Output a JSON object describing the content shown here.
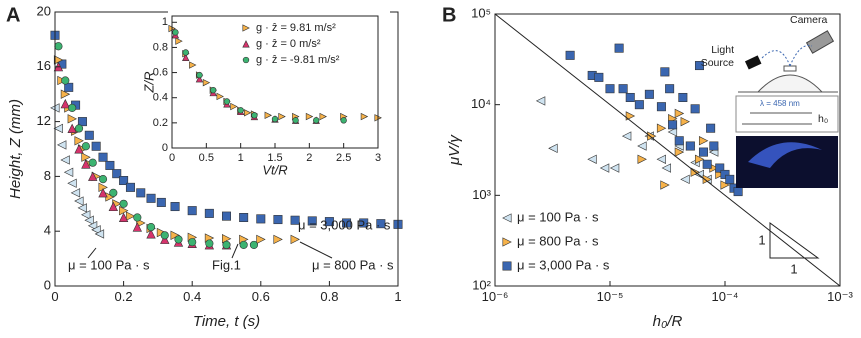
{
  "chart_data": [
    {
      "type": "scatter",
      "label": "A",
      "xlabel": "Time, t (s)",
      "ylabel": "Height, Z (mm)",
      "xlim": [
        0,
        1
      ],
      "xticks": [
        0,
        0.2,
        0.4,
        0.6,
        0.8,
        1
      ],
      "ylim": [
        0,
        20
      ],
      "yticks": [
        0,
        4,
        8,
        12,
        16,
        20
      ],
      "annotations": [
        "μ = 100 Pa · s",
        "Fig.1",
        "μ = 800 Pa · s",
        "μ = 3,000 Pa · s"
      ],
      "series": [
        {
          "color": "#3a66b0",
          "marker": "square",
          "x": [
            0,
            0.02,
            0.04,
            0.06,
            0.08,
            0.1,
            0.12,
            0.14,
            0.16,
            0.18,
            0.2,
            0.22,
            0.25,
            0.28,
            0.31,
            0.35,
            0.4,
            0.45,
            0.5,
            0.55,
            0.6,
            0.65,
            0.7,
            0.75,
            0.8,
            0.85,
            0.9,
            0.95,
            1
          ],
          "values": [
            18.3,
            16.2,
            14.5,
            13.2,
            12,
            11,
            10.2,
            9.4,
            8.8,
            8.2,
            7.7,
            7.2,
            6.8,
            6.4,
            6.1,
            5.8,
            5.5,
            5.3,
            5.1,
            5,
            4.9,
            4.85,
            4.8,
            4.75,
            4.7,
            4.6,
            4.6,
            4.55,
            4.5
          ]
        },
        {
          "color": "#f6b24a",
          "marker": "triangle-right",
          "x": [
            0.01,
            0.02,
            0.03,
            0.04,
            0.05,
            0.06,
            0.07,
            0.08,
            0.09,
            0.1,
            0.12,
            0.14,
            0.16,
            0.18,
            0.2,
            0.22,
            0.25,
            0.28,
            0.31,
            0.35,
            0.4,
            0.45,
            0.5,
            0.55,
            0.6,
            0.65,
            0.7
          ],
          "values": [
            16.5,
            15,
            14,
            13,
            12.2,
            11.3,
            10.6,
            10,
            9.4,
            8.9,
            8,
            7.2,
            6.5,
            6,
            5.5,
            5.1,
            4.6,
            4.2,
            3.9,
            3.7,
            3.55,
            3.5,
            3.45,
            3.4,
            3.4,
            3.4,
            3.4
          ]
        },
        {
          "color": "#d6336c",
          "marker": "triangle-up",
          "x": [
            0.01,
            0.03,
            0.05,
            0.07,
            0.09,
            0.11,
            0.14,
            0.17,
            0.2,
            0.24,
            0.28,
            0.32,
            0.36,
            0.4,
            0.45,
            0.5
          ],
          "values": [
            16,
            13.3,
            11.5,
            10,
            8.9,
            8,
            6.8,
            5.8,
            5,
            4.3,
            3.8,
            3.4,
            3.2,
            3.1,
            3,
            3
          ]
        },
        {
          "color": "#3cb371",
          "marker": "circle",
          "x": [
            0.01,
            0.03,
            0.05,
            0.07,
            0.09,
            0.11,
            0.14,
            0.17,
            0.2,
            0.24,
            0.28,
            0.32,
            0.36,
            0.4,
            0.45,
            0.5,
            0.55,
            0.58
          ],
          "values": [
            17.5,
            15,
            13,
            11.5,
            10.2,
            9,
            7.8,
            6.8,
            6,
            5,
            4.3,
            3.7,
            3.4,
            3.2,
            3.1,
            3,
            3,
            3
          ]
        },
        {
          "color": "#cfe3f0",
          "marker": "triangle-left",
          "x": [
            0,
            0.01,
            0.02,
            0.03,
            0.04,
            0.05,
            0.06,
            0.07,
            0.08,
            0.09,
            0.1,
            0.11,
            0.12,
            0.13
          ],
          "values": [
            13,
            11.5,
            10.3,
            9.2,
            8.3,
            7.5,
            6.8,
            6.2,
            5.7,
            5.2,
            4.8,
            4.4,
            4.1,
            3.8
          ]
        }
      ]
    },
    {
      "type": "scatter",
      "xlabel": "Vt/R",
      "ylabel": "Z/R",
      "legend": "upper right",
      "xlim": [
        0,
        3
      ],
      "xticks": [
        0,
        0.5,
        1,
        1.5,
        2,
        2.5,
        3
      ],
      "ylim": [
        0,
        1.05
      ],
      "yticks": [
        0,
        0.2,
        0.4,
        0.6,
        0.8,
        1
      ],
      "series": [
        {
          "name": "g · ẑ = 9.81 m/s²",
          "color": "#f6b24a",
          "marker": "triangle-right",
          "x": [
            0,
            0.1,
            0.2,
            0.3,
            0.4,
            0.5,
            0.6,
            0.7,
            0.8,
            0.9,
            1,
            1.1,
            1.2,
            1.4,
            1.6,
            1.8,
            2,
            2.2,
            2.5,
            2.8,
            3
          ],
          "values": [
            0.95,
            0.85,
            0.75,
            0.66,
            0.58,
            0.52,
            0.46,
            0.41,
            0.37,
            0.33,
            0.3,
            0.28,
            0.27,
            0.26,
            0.25,
            0.25,
            0.25,
            0.25,
            0.25,
            0.25,
            0.24
          ]
        },
        {
          "name": "g · ẑ = 0 m/s²",
          "color": "#d6336c",
          "marker": "triangle-up",
          "x": [
            0.05,
            0.2,
            0.4,
            0.6,
            0.8,
            1,
            1.2,
            1.5,
            1.8,
            2.1
          ],
          "values": [
            0.9,
            0.72,
            0.55,
            0.44,
            0.35,
            0.29,
            0.25,
            0.23,
            0.22,
            0.22
          ]
        },
        {
          "name": "g · ẑ = -9.81 m/s²",
          "color": "#3cb371",
          "marker": "circle",
          "x": [
            0.05,
            0.2,
            0.4,
            0.6,
            0.8,
            1,
            1.2,
            1.5,
            1.8,
            2.1,
            2.5
          ],
          "values": [
            0.92,
            0.76,
            0.58,
            0.46,
            0.37,
            0.3,
            0.26,
            0.23,
            0.22,
            0.22,
            0.22
          ]
        }
      ]
    },
    {
      "type": "scatter",
      "label": "B",
      "xlabel": "h₀/R",
      "ylabel": "μV/γ",
      "log": true,
      "legend": "lower left",
      "xlim": [
        1e-06,
        0.001
      ],
      "xticks": [
        {
          "value": 1e-06,
          "label": "10⁻⁶"
        },
        {
          "value": 1e-05,
          "label": "10⁻⁵"
        },
        {
          "value": 0.0001,
          "label": "10⁻⁴"
        },
        {
          "value": 0.001,
          "label": "10⁻³"
        }
      ],
      "ylim": [
        100,
        100000
      ],
      "yticks": [
        {
          "value": 100,
          "label": "10²"
        },
        {
          "value": 1000,
          "label": "10³"
        },
        {
          "value": 10000,
          "label": "10⁴"
        },
        {
          "value": 100000,
          "label": "10⁵"
        }
      ],
      "slope_labels": [
        "1",
        "1"
      ],
      "series": [
        {
          "name": "μ = 100 Pa · s",
          "color": "#cfe3f0",
          "marker": "triangle-left",
          "x": [
            2.5e-06,
            3.2e-06,
            7e-06,
            9e-06,
            1.1e-05,
            1.4e-05,
            1.9e-05,
            2.2e-05,
            2.8e-05,
            3.1e-05,
            3.5e-05,
            4e-05,
            4.5e-05,
            5.5e-05,
            6e-05,
            7e-05,
            8e-05
          ],
          "values": [
            11000,
            3300,
            2500,
            2000,
            2000,
            4500,
            3500,
            4500,
            2500,
            2000,
            5000,
            3500,
            1500,
            2300,
            1700,
            1500,
            3000
          ]
        },
        {
          "name": "μ = 800 Pa · s",
          "color": "#f6b24a",
          "marker": "triangle-right",
          "x": [
            1.5e-05,
            1.9e-05,
            2.3e-05,
            2.8e-05,
            3e-05,
            3.5e-05,
            4e-05,
            4e-05,
            4.5e-05,
            5e-05,
            5.5e-05,
            6e-05,
            6.5e-05,
            7e-05,
            8e-05,
            9e-05,
            0.0001,
            0.00012
          ],
          "values": [
            7500,
            2500,
            4500,
            5500,
            1300,
            7000,
            3000,
            8000,
            6500,
            3500,
            1800,
            2500,
            4000,
            1500,
            2000,
            1700,
            1300,
            1200
          ]
        },
        {
          "name": "μ = 3,000 Pa · s",
          "color": "#3a66b0",
          "marker": "square",
          "x": [
            4.5e-06,
            7e-06,
            8e-06,
            1e-05,
            1.2e-05,
            1.3e-05,
            1.5e-05,
            1.8e-05,
            2.2e-05,
            2.8e-05,
            3e-05,
            3.3e-05,
            3.5e-05,
            4e-05,
            4.3e-05,
            5e-05,
            5.5e-05,
            6e-05,
            6.5e-05,
            7e-05,
            7.5e-05,
            8e-05,
            9e-05,
            0.0001,
            0.00011,
            0.00012,
            0.00013
          ],
          "values": [
            35000,
            21000,
            20000,
            15000,
            42000,
            15000,
            12000,
            10000,
            13000,
            9500,
            23000,
            15000,
            6000,
            4000,
            12000,
            3500,
            9000,
            27000,
            3000,
            2200,
            5500,
            3500,
            2000,
            1700,
            1500,
            1200,
            1100
          ]
        }
      ]
    }
  ],
  "diagram": {
    "light": "Light",
    "source": "Source",
    "camera": "Camera",
    "wavelength": "λ = 458 nm",
    "gap": "h₀"
  }
}
